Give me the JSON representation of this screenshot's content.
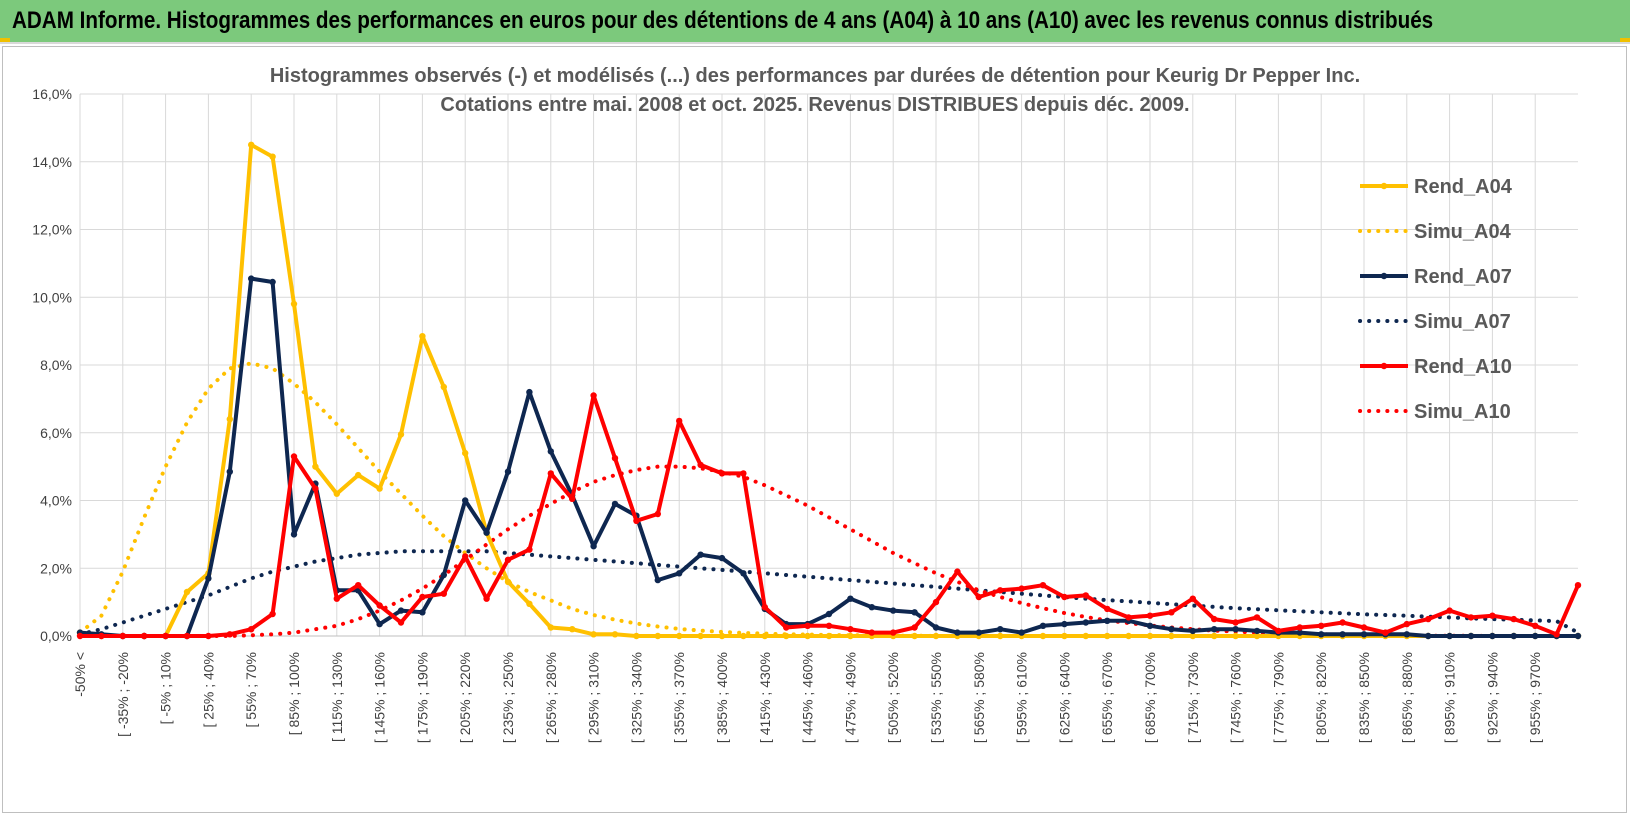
{
  "banner": {
    "title": "ADAM Informe. Histogrammes des performances en euros pour des détentions de 4 ans (A04) à 10 ans (A10) avec les revenus connus distribués"
  },
  "colors": {
    "A04": "#ffc000",
    "A07": "#0e2750",
    "A10": "#ff0000",
    "banner": "#7cc97c"
  },
  "chart_data": {
    "type": "line",
    "title": "Histogrammes observés (-) et modélisés (...) des performances par durées de détention pour Keurig Dr Pepper Inc.",
    "subtitle": "Cotations entre mai. 2008 et oct. 2025. Revenus DISTRIBUES depuis déc. 2009.",
    "ylim": [
      0,
      16
    ],
    "yticks": [
      "0,0%",
      "2,0%",
      "4,0%",
      "6,0%",
      "8,0%",
      "10,0%",
      "12,0%",
      "14,0%",
      "16,0%"
    ],
    "grid": true,
    "legend_position": "right",
    "xtick_labels": [
      "-50% <",
      "[ -35% ; -20%",
      "[ -5% ; 10%",
      "[ 25% ; 40%",
      "[ 55% ; 70%",
      "[ 85% ; 100%",
      "[ 115% ; 130%",
      "[ 145% ; 160%",
      "[ 175% ; 190%",
      "[ 205% ; 220%",
      "[ 235% ; 250%",
      "[ 265% ; 280%",
      "[ 295% ; 310%",
      "[ 325% ; 340%",
      "[ 355% ; 370%",
      "[ 385% ; 400%",
      "[ 415% ; 430%",
      "[ 445% ; 460%",
      "[ 475% ; 490%",
      "[ 505% ; 520%",
      "[ 535% ; 550%",
      "[ 565% ; 580%",
      "[ 595% ; 610%",
      "[ 625% ; 640%",
      "[ 655% ; 670%",
      "[ 685% ; 700%",
      "[ 715% ; 730%",
      "[ 745% ; 760%",
      "[ 775% ; 790%",
      "[ 805% ; 820%",
      "[ 835% ; 850%",
      "[ 865% ; 880%",
      "[ 895% ; 910%",
      "[ 925% ; 940%",
      "[ 955% ; 970%"
    ],
    "series": [
      {
        "name": "Rend_A04",
        "style": "solid",
        "color": "#ffc000",
        "values": [
          0.1,
          0.0,
          0.0,
          0.0,
          0.0,
          1.3,
          1.85,
          6.4,
          14.5,
          14.15,
          9.8,
          5.0,
          4.2,
          4.75,
          4.35,
          5.95,
          8.85,
          7.35,
          5.4,
          3.05,
          1.6,
          0.95,
          0.25,
          0.2,
          0.05,
          0.05,
          0.0,
          0.0,
          0,
          0,
          0,
          0,
          0,
          0,
          0,
          0,
          0,
          0,
          0,
          0,
          0,
          0,
          0,
          0,
          0,
          0,
          0,
          0,
          0,
          0,
          0,
          0,
          0,
          0,
          0,
          0,
          0,
          0,
          0,
          0,
          0,
          0,
          0,
          0,
          0,
          0,
          0,
          0,
          0,
          0,
          0
        ]
      },
      {
        "name": "Simu_A04",
        "style": "dotted",
        "color": "#ffc000",
        "values": [
          0.1,
          0.6,
          1.9,
          3.5,
          5.0,
          6.3,
          7.3,
          7.9,
          8.05,
          7.9,
          7.45,
          6.9,
          6.25,
          5.55,
          4.85,
          4.2,
          3.55,
          2.95,
          2.45,
          2.0,
          1.6,
          1.3,
          1.05,
          0.8,
          0.62,
          0.48,
          0.37,
          0.28,
          0.21,
          0.16,
          0.12,
          0.09,
          0.07,
          0.05,
          0.04,
          0.03,
          0.02,
          0.02,
          0.01,
          0.01,
          0,
          0,
          0,
          0,
          0,
          0,
          0,
          0,
          0,
          0,
          0,
          0,
          0,
          0,
          0,
          0,
          0,
          0,
          0,
          0,
          0,
          0,
          0,
          0,
          0,
          0,
          0,
          0,
          0,
          0,
          0
        ]
      },
      {
        "name": "Rend_A07",
        "style": "solid",
        "color": "#0e2750",
        "values": [
          0.1,
          0.05,
          0.0,
          0.0,
          0.0,
          0.0,
          1.7,
          4.85,
          10.55,
          10.45,
          3.0,
          4.5,
          1.35,
          1.35,
          0.35,
          0.75,
          0.7,
          1.8,
          4.0,
          3.05,
          4.85,
          7.2,
          5.45,
          4.15,
          2.65,
          3.9,
          3.55,
          1.65,
          1.85,
          2.4,
          2.3,
          1.85,
          0.8,
          0.35,
          0.35,
          0.65,
          1.1,
          0.85,
          0.75,
          0.7,
          0.25,
          0.1,
          0.1,
          0.2,
          0.1,
          0.3,
          0.35,
          0.4,
          0.45,
          0.45,
          0.3,
          0.2,
          0.15,
          0.2,
          0.2,
          0.15,
          0.1,
          0.1,
          0.05,
          0.05,
          0.05,
          0.05,
          0.05,
          0.0,
          0.0,
          0.0,
          0.0,
          0.0,
          0.0,
          0.0,
          0.0
        ]
      },
      {
        "name": "Simu_A07",
        "style": "dotted",
        "color": "#0e2750",
        "values": [
          0.05,
          0.2,
          0.4,
          0.6,
          0.8,
          1.0,
          1.2,
          1.45,
          1.7,
          1.9,
          2.05,
          2.2,
          2.3,
          2.4,
          2.45,
          2.5,
          2.5,
          2.5,
          2.5,
          2.5,
          2.45,
          2.4,
          2.35,
          2.3,
          2.25,
          2.2,
          2.15,
          2.1,
          2.05,
          2.0,
          1.95,
          1.9,
          1.85,
          1.8,
          1.75,
          1.7,
          1.65,
          1.6,
          1.55,
          1.5,
          1.45,
          1.4,
          1.35,
          1.3,
          1.25,
          1.2,
          1.15,
          1.1,
          1.06,
          1.02,
          0.98,
          0.94,
          0.9,
          0.86,
          0.82,
          0.79,
          0.76,
          0.73,
          0.7,
          0.67,
          0.64,
          0.62,
          0.6,
          0.57,
          0.55,
          0.52,
          0.5,
          0.48,
          0.46,
          0.44,
          0.1
        ]
      },
      {
        "name": "Rend_A10",
        "style": "solid",
        "color": "#ff0000",
        "values": [
          0.0,
          0.0,
          0.0,
          0.0,
          0.0,
          0.0,
          0.0,
          0.05,
          0.2,
          0.65,
          5.3,
          4.35,
          1.1,
          1.5,
          0.9,
          0.4,
          1.15,
          1.25,
          2.35,
          1.1,
          2.25,
          2.55,
          4.8,
          4.05,
          7.1,
          5.25,
          3.4,
          3.6,
          6.35,
          5.05,
          4.8,
          4.8,
          0.85,
          0.25,
          0.3,
          0.3,
          0.2,
          0.1,
          0.1,
          0.25,
          1.0,
          1.9,
          1.15,
          1.35,
          1.4,
          1.5,
          1.15,
          1.2,
          0.8,
          0.55,
          0.6,
          0.7,
          1.1,
          0.5,
          0.4,
          0.55,
          0.15,
          0.25,
          0.3,
          0.4,
          0.25,
          0.1,
          0.35,
          0.5,
          0.75,
          0.55,
          0.6,
          0.5,
          0.3,
          0.05,
          1.5
        ]
      },
      {
        "name": "Simu_A10",
        "style": "dotted",
        "color": "#ff0000",
        "values": [
          0.0,
          0.0,
          0.0,
          0.0,
          0.0,
          0.0,
          0.0,
          0.0,
          0.02,
          0.05,
          0.1,
          0.2,
          0.3,
          0.5,
          0.75,
          1.05,
          1.4,
          1.8,
          2.25,
          2.7,
          3.15,
          3.55,
          3.9,
          4.25,
          4.55,
          4.75,
          4.9,
          5.0,
          5.0,
          4.95,
          4.85,
          4.7,
          4.45,
          4.15,
          3.85,
          3.5,
          3.15,
          2.8,
          2.45,
          2.15,
          1.85,
          1.6,
          1.35,
          1.15,
          0.97,
          0.82,
          0.68,
          0.56,
          0.46,
          0.38,
          0.31,
          0.25,
          0.2,
          0.16,
          0.13,
          0.1,
          0.08,
          0.06,
          0.05,
          0.04,
          0.03,
          0.02,
          0.02,
          0.01,
          0.01,
          0.01,
          0,
          0,
          0,
          0,
          0
        ]
      }
    ]
  }
}
